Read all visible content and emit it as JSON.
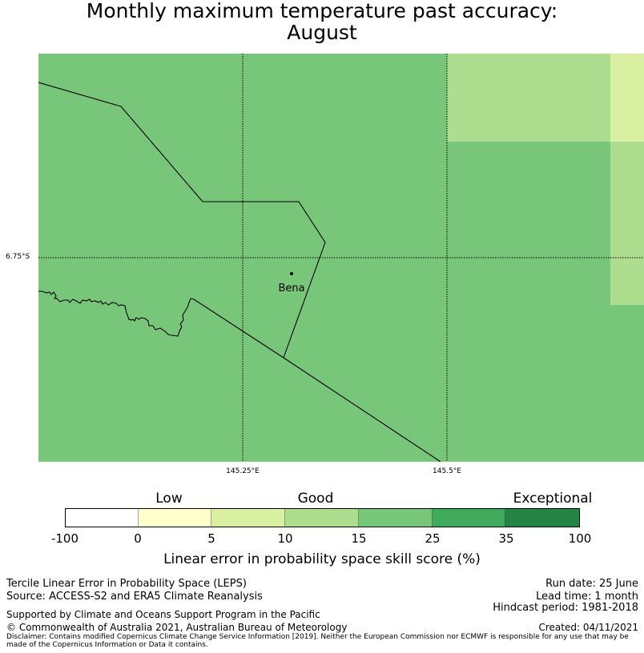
{
  "title_line1": "Monthly maximum temperature past accuracy:",
  "title_line2": "August",
  "map": {
    "place_name": "Bena",
    "lat_label": "6.75°S",
    "lon_labels": [
      "145.25°E",
      "145.5°E"
    ],
    "base_color": "#78c679",
    "cell_colors": {
      "light_green": "#addd8e",
      "pale_yellow": "#d9f0a3"
    }
  },
  "colorbar": {
    "categories": [
      "Low",
      "Good",
      "Exceptional"
    ],
    "ticks": [
      "-100",
      "0",
      "5",
      "10",
      "15",
      "25",
      "35",
      "100"
    ],
    "colors": [
      "#ffffff",
      "#ffffcc",
      "#d9f0a3",
      "#addd8e",
      "#78c679",
      "#41ab5d",
      "#238443"
    ],
    "label": "Linear error in probability space skill score (%)"
  },
  "footer": {
    "left_line1": "Tercile Linear Error in Probability Space (LEPS)",
    "left_line2": "Source: ACCESS-S2 and ERA5 Climate Reanalysis",
    "supported": "Supported by Climate and Oceans Support Program in the Pacific",
    "copyright": "© Commonwealth of Australia 2021, Australian Bureau of Meteorology",
    "run_date": "Run date: 25 June",
    "lead_time": "Lead time: 1 month",
    "hindcast": "Hindcast period: 1981-2018",
    "created": "Created: 04/11/2021",
    "disclaimer": "Disclaimer: Contains modified Copernicus Climate Change Service Information [2019]. Neither the European Commission nor ECMWF is responsible for any use that may be made of the Copernicus Information or Data it contains."
  }
}
